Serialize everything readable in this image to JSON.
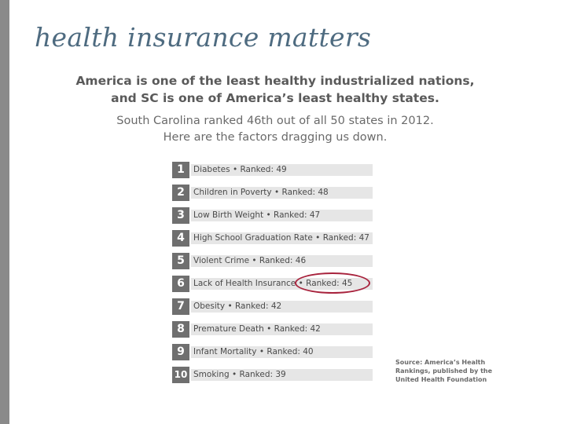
{
  "slide": {
    "title": "health insurance matters"
  },
  "graphic": {
    "headline_line1": "America is one of the least healthy industrialized nations,",
    "headline_line2": "and SC is one of America’s least healthy states.",
    "subline_line1": "South Carolina ranked 46th out of all 50 states in 2012.",
    "subline_line2": "Here are the factors dragging us down.",
    "factors": [
      {
        "number": "1",
        "text": "Diabetes • Ranked: 49"
      },
      {
        "number": "2",
        "text": "Children in Poverty • Ranked: 48"
      },
      {
        "number": "3",
        "text": "Low Birth Weight • Ranked: 47"
      },
      {
        "number": "4",
        "text": "High School Graduation Rate • Ranked: 47"
      },
      {
        "number": "5",
        "text": "Violent Crime • Ranked: 46"
      },
      {
        "number": "6",
        "text": "Lack of Health Insurance • Ranked: 45"
      },
      {
        "number": "7",
        "text": "Obesity • Ranked: 42"
      },
      {
        "number": "8",
        "text": "Premature Death • Ranked: 42"
      },
      {
        "number": "9",
        "text": "Infant Mortality • Ranked: 40"
      },
      {
        "number": "10",
        "text": "Smoking • Ranked: 39"
      }
    ],
    "highlighted_factor": "6",
    "highlight_color": "#a8233d",
    "source_line1": "Source: America’s Health",
    "source_line2": "Rankings, published by the",
    "source_line3": "United Health Foundation"
  }
}
